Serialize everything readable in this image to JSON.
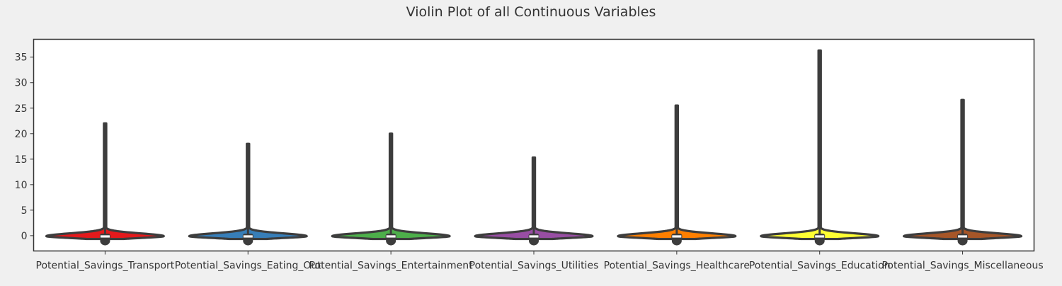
{
  "chart_data": {
    "type": "violin",
    "title": "Violin Plot of all Continuous Variables",
    "xlabel": "",
    "ylabel": "",
    "ylim": [
      -3,
      38.5
    ],
    "yticks": [
      0,
      5,
      10,
      15,
      20,
      25,
      30,
      35
    ],
    "grid": false,
    "categories": [
      "Potential_Savings_Transport",
      "Potential_Savings_Eating_Out",
      "Potential_Savings_Entertainment",
      "Potential_Savings_Utilities",
      "Potential_Savings_Healthcare",
      "Potential_Savings_Education",
      "Potential_Savings_Miscellaneous"
    ],
    "series": [
      {
        "min": -0.65,
        "max": 22.0,
        "q1": -0.45,
        "median": -0.15,
        "q3": 0.05,
        "color": "#e41a1c"
      },
      {
        "min": -0.65,
        "max": 18.0,
        "q1": -0.45,
        "median": -0.15,
        "q3": 0.05,
        "color": "#377eb8"
      },
      {
        "min": -0.65,
        "max": 20.0,
        "q1": -0.45,
        "median": -0.15,
        "q3": 0.05,
        "color": "#4daf4a"
      },
      {
        "min": -0.65,
        "max": 15.3,
        "q1": -0.45,
        "median": -0.15,
        "q3": 0.05,
        "color": "#984ea3"
      },
      {
        "min": -0.65,
        "max": 25.5,
        "q1": -0.45,
        "median": -0.15,
        "q3": 0.05,
        "color": "#ff7f00"
      },
      {
        "min": -0.65,
        "max": 36.3,
        "q1": -0.45,
        "median": -0.15,
        "q3": 0.05,
        "color": "#ffff33"
      },
      {
        "min": -0.65,
        "max": 26.6,
        "q1": -0.45,
        "median": -0.15,
        "q3": 0.05,
        "color": "#a65628"
      }
    ]
  }
}
